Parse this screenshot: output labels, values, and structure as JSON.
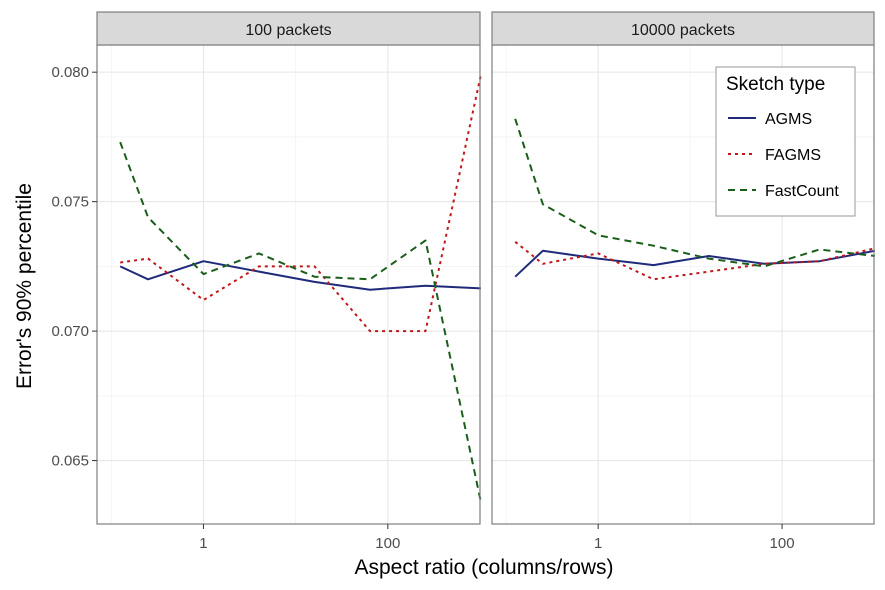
{
  "chart_data": {
    "type": "line",
    "xlabel": "Aspect ratio (columns/rows)",
    "ylabel": "Error's 90% percentile",
    "x_scale": "log10",
    "xlim": [
      0.07,
      1000
    ],
    "ylim": [
      0.06255,
      0.08105
    ],
    "x_ticks": [
      1,
      100
    ],
    "x_tick_labels": [
      "1",
      "100"
    ],
    "y_ticks": [
      0.065,
      0.07,
      0.075,
      0.08
    ],
    "y_tick_labels": [
      "0.065",
      "0.070",
      "0.075",
      "0.080"
    ],
    "grid": true,
    "legend": {
      "title": "Sketch type",
      "position": "top-right",
      "entries": [
        "AGMS",
        "FAGMS",
        "FastCount"
      ]
    },
    "series_styles": {
      "AGMS": {
        "color": "#1f2a7a",
        "dash": ""
      },
      "FAGMS": {
        "color": "#c0181a",
        "dash": "3,4"
      },
      "FastCount": {
        "color": "#1a5e1a",
        "dash": "7,5"
      }
    },
    "x": [
      0.125,
      0.25,
      1,
      4,
      16,
      64,
      256,
      1024
    ],
    "panels": [
      {
        "title": "100 packets",
        "series": [
          {
            "name": "AGMS",
            "values": [
              0.0725,
              0.072,
              0.0727,
              0.0723,
              0.0719,
              0.0716,
              0.07175,
              0.07165
            ]
          },
          {
            "name": "FAGMS",
            "values": [
              0.07265,
              0.0728,
              0.0712,
              0.0725,
              0.0725,
              0.07,
              0.07,
              0.0799
            ]
          },
          {
            "name": "FastCount",
            "values": [
              0.0773,
              0.0744,
              0.0722,
              0.073,
              0.0721,
              0.072,
              0.0735,
              0.0634
            ]
          }
        ]
      },
      {
        "title": "10000 packets",
        "series": [
          {
            "name": "AGMS",
            "values": [
              0.0721,
              0.0731,
              0.0728,
              0.07255,
              0.0729,
              0.0726,
              0.0727,
              0.0731
            ]
          },
          {
            "name": "FAGMS",
            "values": [
              0.07345,
              0.0726,
              0.073,
              0.072,
              0.0723,
              0.0726,
              0.0727,
              0.0732
            ]
          },
          {
            "name": "FastCount",
            "values": [
              0.0782,
              0.0749,
              0.0737,
              0.0733,
              0.0728,
              0.0725,
              0.07315,
              0.0729
            ]
          }
        ]
      }
    ]
  }
}
